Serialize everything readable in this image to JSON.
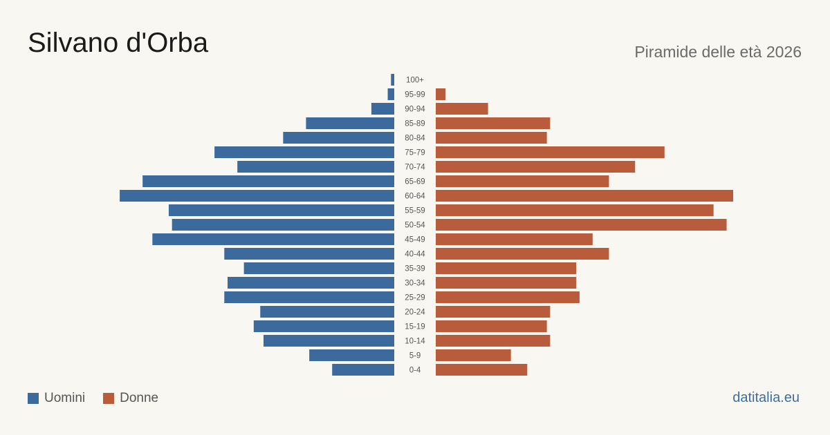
{
  "header": {
    "title": "Silvano d'Orba",
    "subtitle": "Piramide delle età 2026"
  },
  "legend": {
    "men_label": "Uomini",
    "women_label": "Donne"
  },
  "brand": "datitalia.eu",
  "colors": {
    "men": "#3c6a9c",
    "women": "#b85c3c",
    "label": "#555555",
    "background": "#f9f7f2"
  },
  "chart_data": {
    "type": "bar",
    "orientation": "horizontal-pyramid",
    "categories": [
      "100+",
      "95-99",
      "90-94",
      "85-89",
      "80-84",
      "75-79",
      "70-74",
      "65-69",
      "60-64",
      "55-59",
      "50-54",
      "45-49",
      "40-44",
      "35-39",
      "30-34",
      "25-29",
      "20-24",
      "15-19",
      "10-14",
      "5-9",
      "0-4"
    ],
    "series": [
      {
        "name": "Uomini",
        "values": [
          1,
          2,
          7,
          27,
          34,
          55,
          48,
          77,
          84,
          69,
          68,
          74,
          52,
          46,
          51,
          52,
          41,
          43,
          40,
          26,
          19
        ]
      },
      {
        "name": "Donne",
        "values": [
          0,
          3,
          16,
          35,
          34,
          70,
          61,
          53,
          91,
          85,
          89,
          48,
          53,
          43,
          43,
          44,
          35,
          34,
          35,
          23,
          28
        ]
      }
    ],
    "grid": false,
    "legend_position": "bottom-left"
  }
}
